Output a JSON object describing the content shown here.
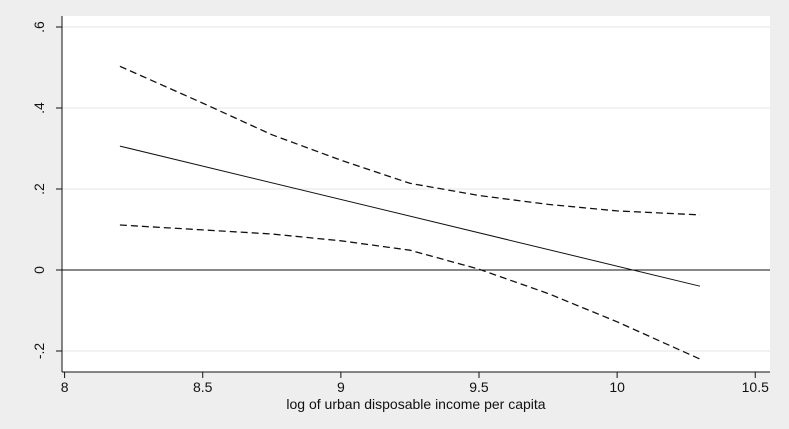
{
  "chart_data": {
    "type": "line",
    "title": "",
    "xlabel": "log of urban disposable income per capita",
    "ylabel": "",
    "xlim": [
      8.0,
      10.5
    ],
    "ylim": [
      -0.2,
      0.6
    ],
    "x_ticks": [
      {
        "value": 8.0,
        "label": "8"
      },
      {
        "value": 8.5,
        "label": "8.5"
      },
      {
        "value": 9.0,
        "label": "9"
      },
      {
        "value": 9.5,
        "label": "9.5"
      },
      {
        "value": 10.0,
        "label": "10"
      },
      {
        "value": 10.5,
        "label": "10.5"
      }
    ],
    "y_ticks": [
      {
        "value": -0.2,
        "label": "-.2"
      },
      {
        "value": 0.0,
        "label": "0"
      },
      {
        "value": 0.2,
        "label": ".2"
      },
      {
        "value": 0.4,
        "label": ".4"
      },
      {
        "value": 0.6,
        "label": ".6"
      }
    ],
    "grid": true,
    "reference_line_y": 0,
    "series": [
      {
        "style": "solid",
        "x": [
          8.2,
          10.3
        ],
        "y": [
          0.306,
          -0.04
        ]
      },
      {
        "style": "dashed",
        "x": [
          8.2,
          8.5,
          8.75,
          9.0,
          9.25,
          9.5,
          9.75,
          10.0,
          10.3
        ],
        "y": [
          0.503,
          0.412,
          0.334,
          0.271,
          0.214,
          0.184,
          0.162,
          0.146,
          0.136
        ]
      },
      {
        "style": "dashed",
        "x": [
          8.2,
          8.5,
          8.75,
          9.0,
          9.25,
          9.5,
          9.75,
          10.0,
          10.3
        ],
        "y": [
          0.111,
          0.099,
          0.089,
          0.072,
          0.049,
          0.002,
          -0.058,
          -0.128,
          -0.22
        ]
      }
    ],
    "colors": {
      "background": "#eeeeee",
      "plot_background": "#ffffff",
      "grid": "#e6e6e6",
      "line": "#111111"
    }
  }
}
